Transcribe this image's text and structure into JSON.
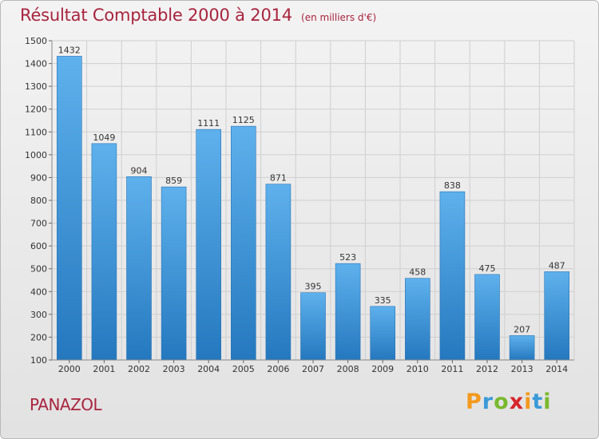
{
  "chart_data": {
    "type": "bar",
    "title": "Résultat Comptable 2000 à 2014",
    "subtitle": "(en milliers d'€)",
    "xlabel": "",
    "ylabel": "",
    "categories": [
      "2000",
      "2001",
      "2002",
      "2003",
      "2004",
      "2005",
      "2006",
      "2007",
      "2008",
      "2009",
      "2010",
      "2011",
      "2012",
      "2013",
      "2014"
    ],
    "values": [
      1432,
      1049,
      904,
      859,
      1111,
      1125,
      871,
      395,
      523,
      335,
      458,
      838,
      475,
      207,
      487
    ],
    "ylim": [
      100,
      1500
    ],
    "yticks": [
      100,
      200,
      300,
      400,
      500,
      600,
      700,
      800,
      900,
      1000,
      1100,
      1200,
      1300,
      1400,
      1500
    ],
    "grid": true,
    "bar_color": "#3a8fd3",
    "grid_color": "#cfcfcf"
  },
  "commune": "PANAZOL",
  "logo": {
    "letters": [
      "P",
      "r",
      "o",
      "x",
      "i",
      "t",
      "i"
    ],
    "colors": [
      "#f39a1e",
      "#3b9ad8",
      "#7ab92e",
      "#d6252c",
      "#f39a1e",
      "#3b9ad8",
      "#7ab92e"
    ]
  }
}
